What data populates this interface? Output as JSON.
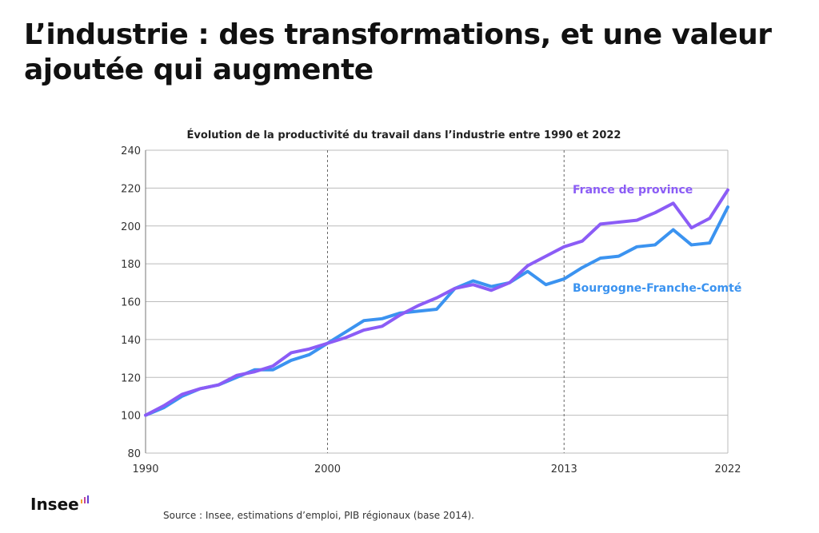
{
  "page": {
    "title": "L’industrie : des transformations, et une valeur ajoutée qui augmente",
    "source": "Source : Insee, estimations d’emploi, PIB régionaux (base 2014).",
    "logo_text": "Insee"
  },
  "chart_data": {
    "type": "line",
    "title": "Évolution de la productivité du travail dans l’industrie entre 1990 et 2022",
    "xlabel": "",
    "ylabel": "",
    "xlim": [
      1990,
      2022
    ],
    "ylim": [
      80,
      240
    ],
    "x_ticks": [
      1990,
      2000,
      2013,
      2022
    ],
    "y_ticks": [
      80,
      100,
      120,
      140,
      160,
      180,
      200,
      220,
      240
    ],
    "vertical_markers": [
      2000,
      2013
    ],
    "grid": "horizontal",
    "x": [
      1990,
      1991,
      1992,
      1993,
      1994,
      1995,
      1996,
      1997,
      1998,
      1999,
      2000,
      2001,
      2002,
      2003,
      2004,
      2005,
      2006,
      2007,
      2008,
      2009,
      2010,
      2011,
      2012,
      2013,
      2014,
      2015,
      2016,
      2017,
      2018,
      2019,
      2020,
      2021,
      2022
    ],
    "series": [
      {
        "name": "France de province",
        "color": "#8b5cf6",
        "label_position": "top-right",
        "values": [
          100,
          105,
          111,
          114,
          116,
          121,
          123,
          126,
          133,
          135,
          138,
          141,
          145,
          147,
          153,
          158,
          162,
          167,
          169,
          166,
          170,
          179,
          184,
          189,
          192,
          201,
          202,
          203,
          207,
          212,
          199,
          204,
          219
        ]
      },
      {
        "name": "Bourgogne-Franche-Comté",
        "color": "#3b93f0",
        "label_position": "right",
        "values": [
          100,
          104,
          110,
          114,
          116,
          120,
          124,
          124,
          129,
          132,
          138,
          144,
          150,
          151,
          154,
          155,
          156,
          167,
          171,
          168,
          170,
          176,
          169,
          172,
          178,
          183,
          184,
          189,
          190,
          198,
          190,
          191,
          210
        ]
      }
    ]
  }
}
